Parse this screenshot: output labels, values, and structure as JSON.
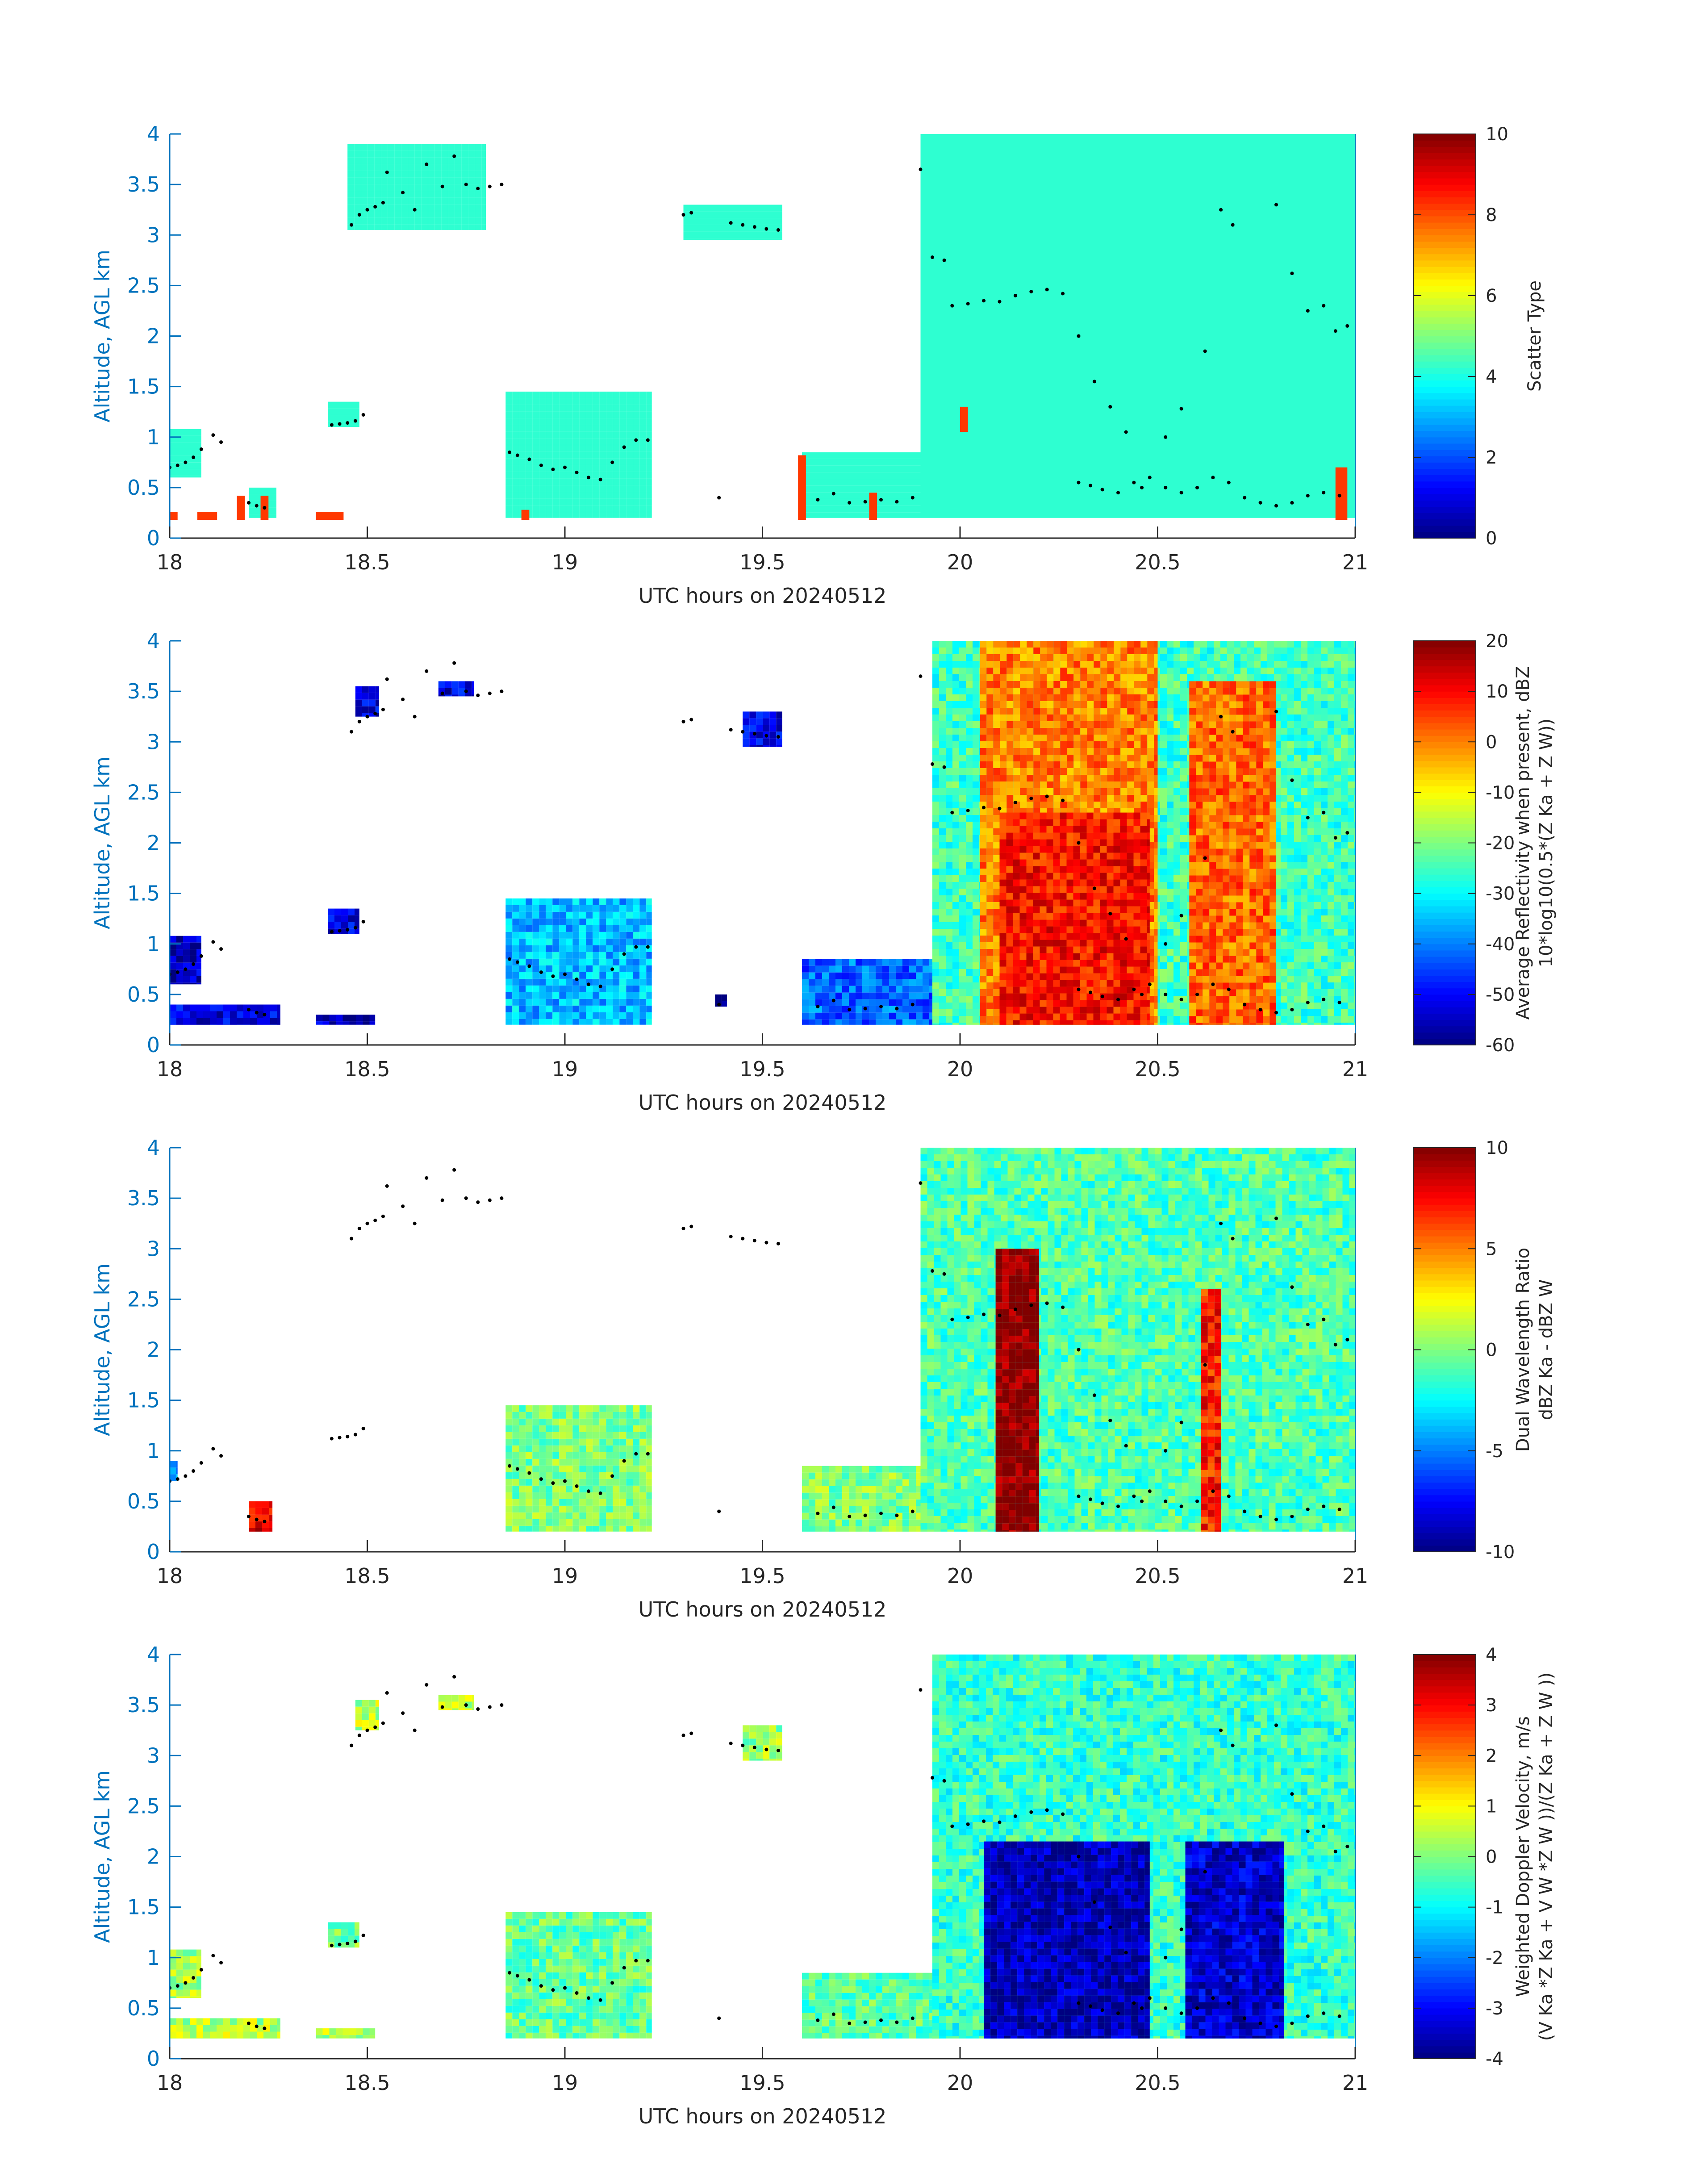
{
  "figure": {
    "x_label": "UTC hours on 20240512",
    "y_label": "Altitude, AGL km",
    "x_ticks": [
      "18",
      "18.5",
      "19",
      "19.5",
      "20",
      "20.5",
      "21"
    ],
    "y_ticks": [
      "0",
      "0.5",
      "1",
      "1.5",
      "2",
      "2.5",
      "3",
      "3.5",
      "4"
    ],
    "axis_color": "#0072BD",
    "colormap": "jet"
  },
  "chart_data": [
    {
      "type": "heatmap",
      "field": "scatter_type",
      "xlabel": "UTC hours on 20240512",
      "ylabel": "Altitude, AGL km",
      "xlim": [
        18,
        21
      ],
      "ylim": [
        0,
        4
      ],
      "colorbar": {
        "label_lines": [
          "Scatter Type"
        ],
        "clim": [
          0,
          10
        ],
        "ticks": [
          "0",
          "2",
          "4",
          "6",
          "8",
          "10"
        ]
      },
      "regions": [
        {
          "x": [
            18.0,
            18.08
          ],
          "y": [
            0.6,
            1.08
          ],
          "value": 4.2
        },
        {
          "x": [
            18.2,
            18.27
          ],
          "y": [
            0.2,
            0.5
          ],
          "value": 4.2
        },
        {
          "x": [
            18.4,
            18.48
          ],
          "y": [
            1.1,
            1.35
          ],
          "value": 4.2
        },
        {
          "x": [
            18.45,
            18.8
          ],
          "y": [
            3.05,
            3.9
          ],
          "value": 4.2
        },
        {
          "x": [
            18.85,
            19.22
          ],
          "y": [
            0.2,
            1.45
          ],
          "value": 4.2
        },
        {
          "x": [
            19.3,
            19.55
          ],
          "y": [
            2.95,
            3.3
          ],
          "value": 4.2
        },
        {
          "x": [
            19.6,
            19.9
          ],
          "y": [
            0.2,
            0.85
          ],
          "value": 4.2
        },
        {
          "x": [
            19.9,
            21.0
          ],
          "y": [
            0.2,
            4.0
          ],
          "value": 4.2
        }
      ],
      "special_cells": [
        {
          "x": [
            18.0,
            18.02
          ],
          "y": [
            0.18,
            0.26
          ],
          "value": 8.2
        },
        {
          "x": [
            18.07,
            18.12
          ],
          "y": [
            0.18,
            0.26
          ],
          "value": 8.2
        },
        {
          "x": [
            18.17,
            18.19
          ],
          "y": [
            0.18,
            0.42
          ],
          "value": 8.2
        },
        {
          "x": [
            18.23,
            18.25
          ],
          "y": [
            0.18,
            0.42
          ],
          "value": 8.2
        },
        {
          "x": [
            18.37,
            18.44
          ],
          "y": [
            0.18,
            0.26
          ],
          "value": 8.2
        },
        {
          "x": [
            18.89,
            18.91
          ],
          "y": [
            0.18,
            0.28
          ],
          "value": 8.2
        },
        {
          "x": [
            19.59,
            19.61
          ],
          "y": [
            0.18,
            0.82
          ],
          "value": 8.2
        },
        {
          "x": [
            19.77,
            19.79
          ],
          "y": [
            0.18,
            0.45
          ],
          "value": 8.2
        },
        {
          "x": [
            20.0,
            20.02
          ],
          "y": [
            1.05,
            1.3
          ],
          "value": 8.2
        },
        {
          "x": [
            20.95,
            20.98
          ],
          "y": [
            0.18,
            0.7
          ],
          "value": 8.2
        }
      ]
    },
    {
      "type": "heatmap",
      "field": "average_reflectivity",
      "xlabel": "UTC hours on 20240512",
      "ylabel": "Altitude, AGL km",
      "xlim": [
        18,
        21
      ],
      "ylim": [
        0,
        4
      ],
      "colorbar": {
        "label_lines": [
          "Average Reflectivity when present, dBZ",
          "10*log10(0.5*(Z Ka + Z W))"
        ],
        "clim": [
          -60,
          20
        ],
        "ticks": [
          "-60",
          "-50",
          "-40",
          "-30",
          "-20",
          "-10",
          "0",
          "10",
          "20"
        ]
      },
      "regions": [
        {
          "x": [
            18.0,
            18.08
          ],
          "y": [
            0.6,
            1.08
          ],
          "value": -55
        },
        {
          "x": [
            18.0,
            18.28
          ],
          "y": [
            0.2,
            0.4
          ],
          "value": -52
        },
        {
          "x": [
            18.37,
            18.52
          ],
          "y": [
            0.2,
            0.3
          ],
          "value": -55
        },
        {
          "x": [
            18.4,
            18.48
          ],
          "y": [
            1.1,
            1.35
          ],
          "value": -52
        },
        {
          "x": [
            18.47,
            18.53
          ],
          "y": [
            3.25,
            3.55
          ],
          "value": -52
        },
        {
          "x": [
            18.68,
            18.77
          ],
          "y": [
            3.45,
            3.6
          ],
          "value": -52
        },
        {
          "x": [
            18.85,
            19.22
          ],
          "y": [
            0.2,
            1.45
          ],
          "value": -35
        },
        {
          "x": [
            19.38,
            19.41
          ],
          "y": [
            0.38,
            0.5
          ],
          "value": -55
        },
        {
          "x": [
            19.45,
            19.55
          ],
          "y": [
            2.95,
            3.3
          ],
          "value": -52
        },
        {
          "x": [
            19.6,
            19.95
          ],
          "y": [
            0.2,
            0.85
          ],
          "value": -42
        },
        {
          "x": [
            19.93,
            21.0
          ],
          "y": [
            0.2,
            4.0
          ],
          "value": -25
        },
        {
          "x": [
            20.05,
            20.5
          ],
          "y": [
            0.2,
            4.0
          ],
          "value": 0
        },
        {
          "x": [
            20.1,
            20.48
          ],
          "y": [
            0.2,
            2.3
          ],
          "value": 9
        },
        {
          "x": [
            20.58,
            20.8
          ],
          "y": [
            0.2,
            3.6
          ],
          "value": 2
        }
      ]
    },
    {
      "type": "heatmap",
      "field": "dual_wavelength_ratio",
      "xlabel": "UTC hours on 20240512",
      "ylabel": "Altitude, AGL km",
      "xlim": [
        18,
        21
      ],
      "ylim": [
        0,
        4
      ],
      "colorbar": {
        "label_lines": [
          "Dual Wavelength Ratio",
          "dBZ Ka - dBZ W"
        ],
        "clim": [
          -10,
          10
        ],
        "ticks": [
          "-10",
          "-5",
          "0",
          "5",
          "10"
        ]
      },
      "regions": [
        {
          "x": [
            18.0,
            18.02
          ],
          "y": [
            0.7,
            0.9
          ],
          "value": -4
        },
        {
          "x": [
            18.2,
            18.26
          ],
          "y": [
            0.2,
            0.5
          ],
          "value": 8
        },
        {
          "x": [
            18.85,
            19.22
          ],
          "y": [
            0.2,
            1.45
          ],
          "value": 0
        },
        {
          "x": [
            19.6,
            19.9
          ],
          "y": [
            0.2,
            0.85
          ],
          "value": 0
        },
        {
          "x": [
            19.9,
            21.0
          ],
          "y": [
            0.2,
            4.0
          ],
          "value": -1
        },
        {
          "x": [
            20.09,
            20.2
          ],
          "y": [
            0.2,
            3.0
          ],
          "value": 10
        },
        {
          "x": [
            20.61,
            20.66
          ],
          "y": [
            0.2,
            2.6
          ],
          "value": 7
        }
      ]
    },
    {
      "type": "heatmap",
      "field": "weighted_doppler_velocity",
      "xlabel": "UTC hours on 20240512",
      "ylabel": "Altitude, AGL km",
      "xlim": [
        18,
        21
      ],
      "ylim": [
        0,
        4
      ],
      "colorbar": {
        "label_lines": [
          "Weighted Doppler Velocity, m/s",
          "(V Ka *Z Ka + V W *Z W ))/(Z Ka + Z W ))"
        ],
        "clim": [
          -4,
          4
        ],
        "ticks": [
          "-4",
          "-3",
          "-2",
          "-1",
          "0",
          "1",
          "2",
          "3",
          "4"
        ]
      },
      "regions": [
        {
          "x": [
            18.0,
            18.08
          ],
          "y": [
            0.6,
            1.08
          ],
          "value": 0.3
        },
        {
          "x": [
            18.0,
            18.28
          ],
          "y": [
            0.2,
            0.4
          ],
          "value": 0.4
        },
        {
          "x": [
            18.37,
            18.52
          ],
          "y": [
            0.2,
            0.3
          ],
          "value": 0.3
        },
        {
          "x": [
            18.4,
            18.48
          ],
          "y": [
            1.1,
            1.35
          ],
          "value": 0
        },
        {
          "x": [
            18.47,
            18.53
          ],
          "y": [
            3.25,
            3.55
          ],
          "value": 0.4
        },
        {
          "x": [
            18.68,
            18.77
          ],
          "y": [
            3.45,
            3.6
          ],
          "value": 0.4
        },
        {
          "x": [
            18.85,
            19.22
          ],
          "y": [
            0.2,
            1.45
          ],
          "value": -0.2
        },
        {
          "x": [
            19.45,
            19.55
          ],
          "y": [
            2.95,
            3.3
          ],
          "value": 0.2
        },
        {
          "x": [
            19.6,
            19.95
          ],
          "y": [
            0.2,
            0.85
          ],
          "value": -0.3
        },
        {
          "x": [
            19.93,
            21.0
          ],
          "y": [
            0.2,
            4.0
          ],
          "value": -0.6
        },
        {
          "x": [
            20.06,
            20.48
          ],
          "y": [
            0.2,
            2.15
          ],
          "value": -3.6
        },
        {
          "x": [
            20.57,
            20.82
          ],
          "y": [
            0.2,
            2.15
          ],
          "value": -3.4
        }
      ]
    }
  ],
  "dots": {
    "x": [
      18.0,
      18.02,
      18.04,
      18.06,
      18.08,
      18.11,
      18.13,
      18.2,
      18.22,
      18.24,
      18.41,
      18.43,
      18.45,
      18.47,
      18.49,
      18.46,
      18.48,
      18.5,
      18.52,
      18.54,
      18.55,
      18.59,
      18.62,
      18.65,
      18.69,
      18.72,
      18.75,
      18.78,
      18.81,
      18.84,
      18.86,
      18.88,
      18.91,
      18.94,
      18.97,
      19.0,
      19.03,
      19.06,
      19.09,
      19.12,
      19.15,
      19.18,
      19.21,
      19.3,
      19.32,
      19.42,
      19.45,
      19.48,
      19.51,
      19.54,
      19.39,
      19.64,
      19.68,
      19.72,
      19.76,
      19.8,
      19.84,
      19.88,
      19.9,
      19.93,
      19.96,
      19.98,
      20.02,
      20.06,
      20.1,
      20.14,
      20.18,
      20.22,
      20.26,
      20.3,
      20.34,
      20.38,
      20.42,
      20.46,
      20.3,
      20.33,
      20.36,
      20.4,
      20.44,
      20.48,
      20.52,
      20.56,
      20.6,
      20.64,
      20.68,
      20.72,
      20.76,
      20.8,
      20.84,
      20.88,
      20.92,
      20.96,
      20.95,
      20.98,
      20.88,
      20.92,
      20.84,
      20.8,
      20.69,
      20.66,
      20.62,
      20.56,
      20.52
    ],
    "y": [
      0.7,
      0.72,
      0.75,
      0.8,
      0.88,
      1.02,
      0.95,
      0.35,
      0.32,
      0.3,
      1.12,
      1.13,
      1.14,
      1.16,
      1.22,
      3.1,
      3.2,
      3.25,
      3.28,
      3.32,
      3.62,
      3.42,
      3.25,
      3.7,
      3.48,
      3.78,
      3.5,
      3.46,
      3.48,
      3.5,
      0.85,
      0.82,
      0.78,
      0.72,
      0.68,
      0.7,
      0.65,
      0.6,
      0.58,
      0.75,
      0.9,
      0.97,
      0.97,
      3.2,
      3.22,
      3.12,
      3.1,
      3.08,
      3.06,
      3.05,
      0.4,
      0.38,
      0.44,
      0.35,
      0.36,
      0.38,
      0.36,
      0.4,
      3.65,
      2.78,
      2.75,
      2.3,
      2.32,
      2.35,
      2.34,
      2.4,
      2.44,
      2.46,
      2.42,
      2.0,
      1.55,
      1.3,
      1.05,
      0.5,
      0.55,
      0.52,
      0.48,
      0.45,
      0.55,
      0.6,
      0.5,
      0.45,
      0.5,
      0.6,
      0.55,
      0.4,
      0.35,
      0.32,
      0.35,
      0.42,
      0.45,
      0.42,
      2.05,
      2.1,
      2.25,
      2.3,
      2.62,
      3.3,
      3.1,
      3.25,
      1.85,
      1.28,
      1.0
    ]
  }
}
